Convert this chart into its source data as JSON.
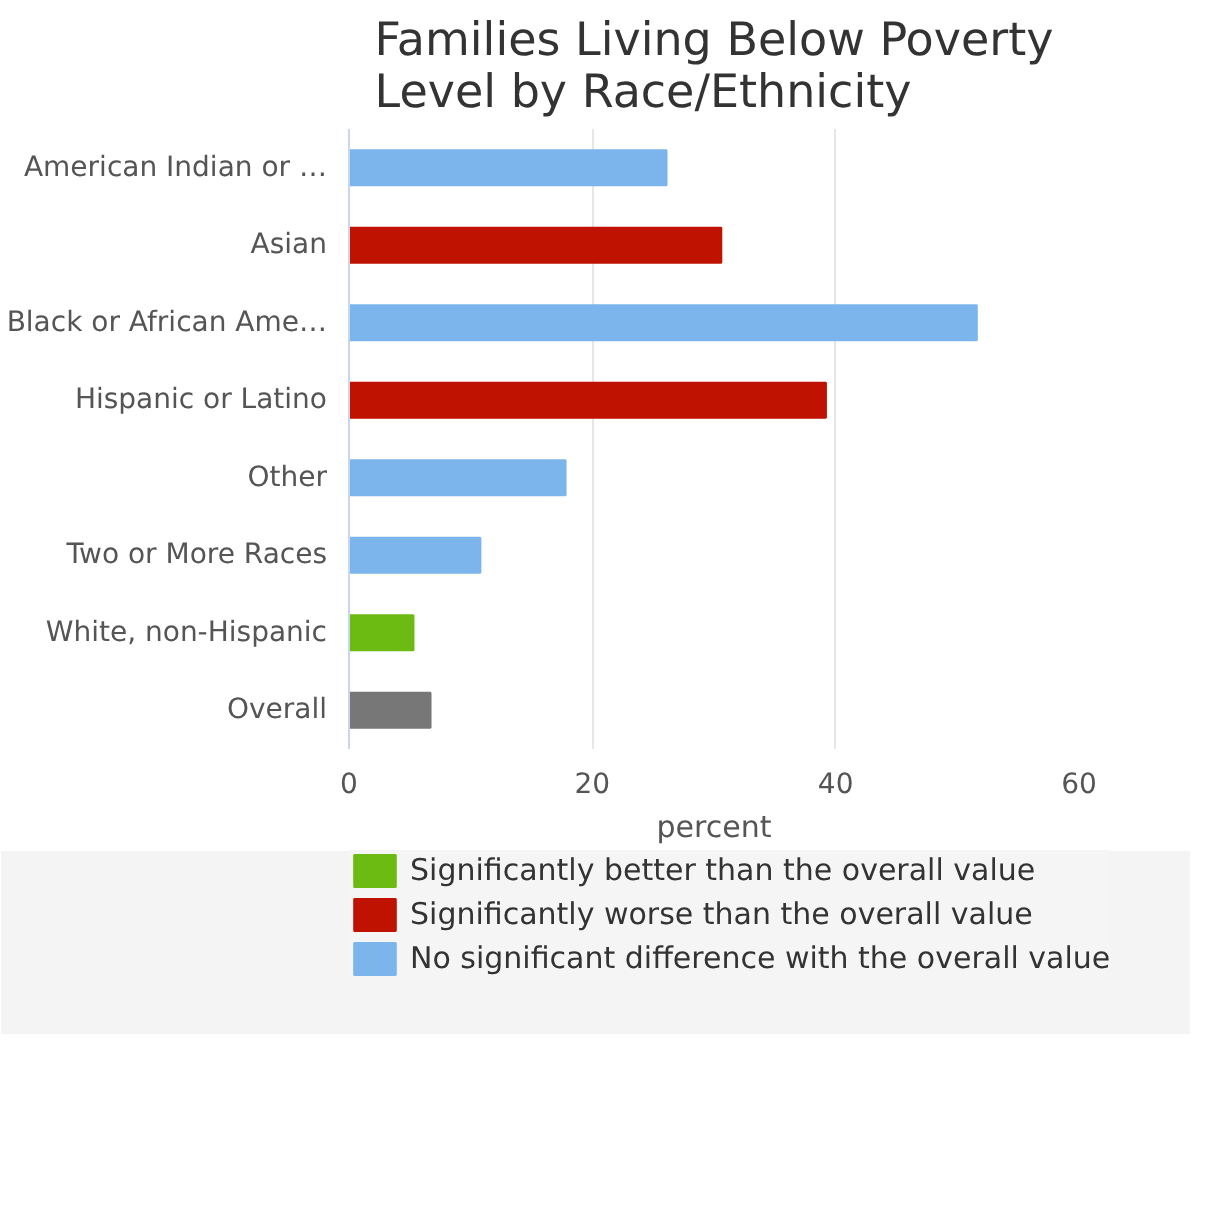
{
  "chart_data": {
    "type": "bar",
    "orientation": "horizontal",
    "title": "Families Living Below Poverty Level by Race/Ethnicity",
    "xlabel": "percent",
    "categories": [
      "American Indian or …",
      "Asian",
      "Black or African Ame…",
      "Hispanic or Latino",
      "Other",
      "Two or More Races",
      "White, non-Hispanic",
      "Overall"
    ],
    "series": [
      {
        "name": "Significantly better than the overall value",
        "color": "#6cbb13",
        "values": [
          null,
          null,
          null,
          null,
          null,
          null,
          5.3,
          null
        ]
      },
      {
        "name": "Significantly worse than the overall value",
        "color": "#bf1200",
        "values": [
          null,
          30.6,
          null,
          39.2,
          null,
          null,
          null,
          null
        ]
      },
      {
        "name": "No significant difference with the overall value",
        "color": "#7cb5ec",
        "values": [
          26.1,
          null,
          51.6,
          null,
          17.8,
          10.8,
          null,
          null
        ]
      },
      {
        "color": "#777777",
        "values": [
          null,
          null,
          null,
          null,
          null,
          null,
          null,
          6.7
        ]
      }
    ],
    "xlim": [
      0,
      60
    ],
    "xticks": [
      0,
      20,
      40,
      60
    ],
    "grid": "x",
    "legend": "bottom"
  }
}
